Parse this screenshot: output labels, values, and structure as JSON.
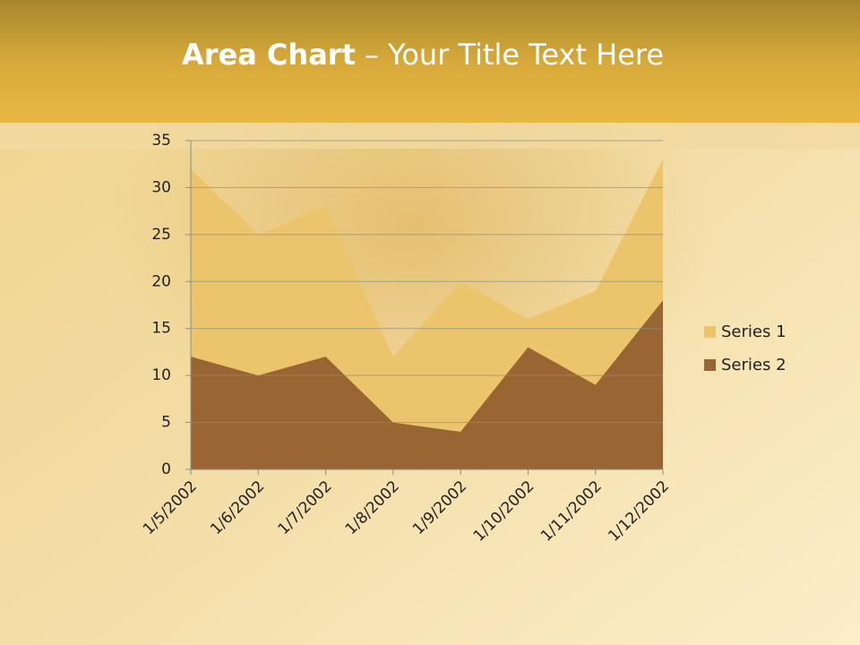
{
  "chart_data": {
    "type": "area",
    "title": "Area Chart",
    "subtitle": "– Your Title Text Here",
    "categories": [
      "1/5/2002",
      "1/6/2002",
      "1/7/2002",
      "1/8/2002",
      "1/9/2002",
      "1/10/2002",
      "1/11/2002",
      "1/12/2002"
    ],
    "series": [
      {
        "name": "Series 1",
        "color": "#ecc46c",
        "values": [
          32,
          25,
          28,
          12,
          20,
          16,
          19,
          33
        ]
      },
      {
        "name": "Series 2",
        "color": "#996633",
        "values": [
          12,
          10,
          12,
          5,
          4,
          13,
          9,
          18
        ]
      }
    ],
    "ylim": [
      0,
      35
    ],
    "yticks": [
      0,
      5,
      10,
      15,
      20,
      25,
      30,
      35
    ],
    "grid": true,
    "legend": "right"
  }
}
